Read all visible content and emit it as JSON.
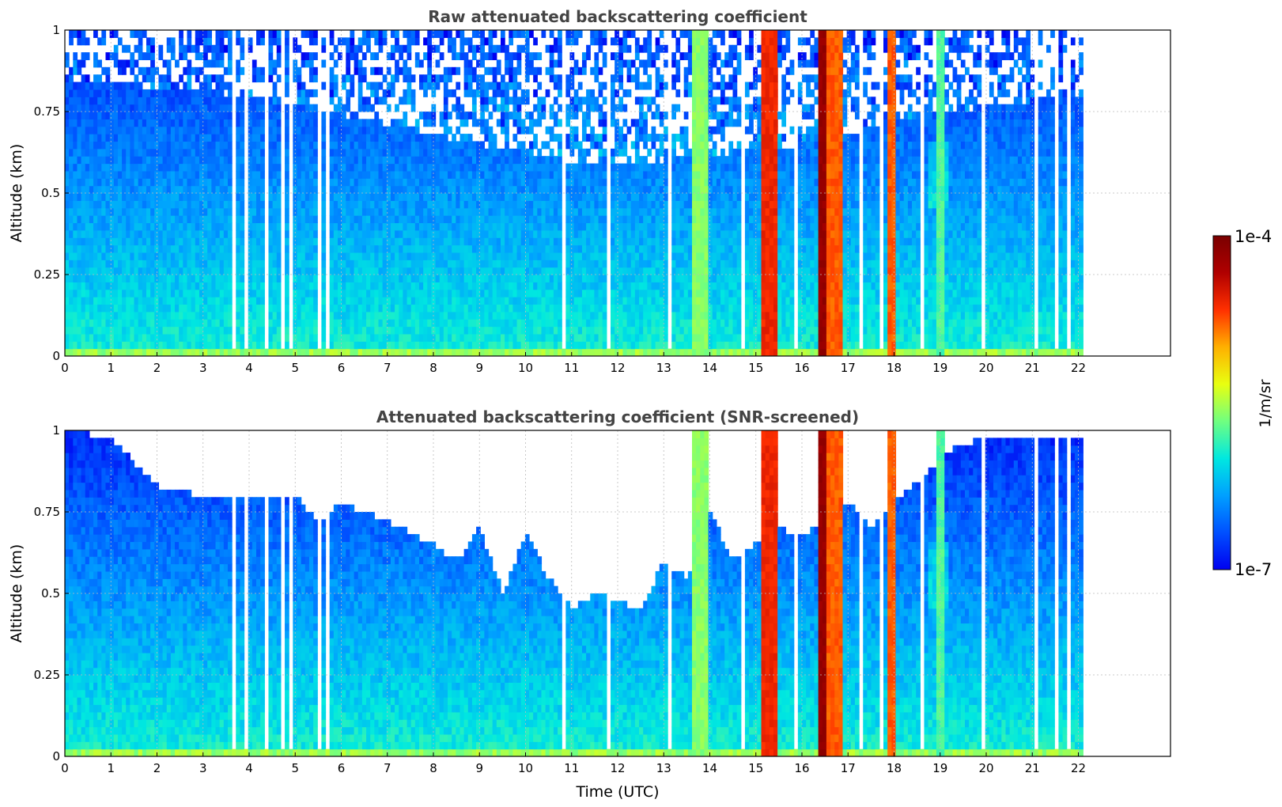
{
  "colors": {
    "plot_bg": "#ffffff",
    "grid": "#bbbbbb",
    "axis": "#000000",
    "title": "#444444"
  },
  "colormap": {
    "name": "jet",
    "stops": [
      "#0000f0",
      "#0050ff",
      "#00a0ff",
      "#00e8e0",
      "#70ff80",
      "#e8ff10",
      "#ffb000",
      "#ff3000",
      "#b00000",
      "#7a0000"
    ]
  },
  "colorbar": {
    "label": "1/m/sr",
    "max_label": "1e-4",
    "min_label": "1e-7",
    "scale": "log",
    "range": [
      1e-07,
      0.0001
    ]
  },
  "xaxis_label": "Time (UTC)",
  "chart_data": [
    {
      "type": "heatmap",
      "title": "Raw attenuated backscattering coefficient",
      "ylabel": "Altitude (km)",
      "xlabel": "",
      "xlim": [
        0,
        24
      ],
      "ylim": [
        0,
        1
      ],
      "x_ticks": [
        "0",
        "1",
        "2",
        "3",
        "4",
        "5",
        "6",
        "7",
        "8",
        "9",
        "10",
        "11",
        "12",
        "13",
        "14",
        "15",
        "16",
        "17",
        "18",
        "19",
        "20",
        "21",
        "22"
      ],
      "y_ticks": [
        "0",
        "0.25",
        "0.5",
        "0.75",
        "1"
      ],
      "grid": true,
      "data_end_hour": 22.1,
      "noise_floor_km": [
        [
          0,
          0.85
        ],
        [
          4,
          0.8
        ],
        [
          9,
          0.65
        ],
        [
          11,
          0.6
        ],
        [
          13,
          0.6
        ],
        [
          16,
          0.65
        ],
        [
          19,
          0.75
        ],
        [
          22.1,
          0.8
        ]
      ],
      "strong_bands": [
        {
          "start": 15.15,
          "end": 15.5,
          "peak_value": 3e-05
        },
        {
          "start": 16.35,
          "end": 16.55,
          "peak_value": 8e-05
        },
        {
          "start": 16.55,
          "end": 16.85,
          "peak_value": 2e-05
        },
        {
          "start": 17.85,
          "end": 18.05,
          "peak_value": 2e-05
        },
        {
          "start": 13.6,
          "end": 14.0,
          "peak_value": 3e-06
        },
        {
          "start": 18.95,
          "end": 19.1,
          "peak_value": 2e-06
        }
      ],
      "gaps_hours": [
        3.7,
        3.9,
        4.4,
        4.7,
        4.9,
        5.3,
        5.5,
        5.7,
        10.8,
        11.4,
        11.8,
        13.1,
        14.7,
        15.9,
        17.3,
        17.7,
        18.6,
        19.9,
        20.6,
        21.1,
        21.5,
        21.8
      ]
    },
    {
      "type": "heatmap",
      "title": "Attenuated backscattering coefficient (SNR-screened)",
      "ylabel": "Altitude (km)",
      "xlabel": "Time (UTC)",
      "xlim": [
        0,
        24
      ],
      "ylim": [
        0,
        1
      ],
      "x_ticks": [
        "0",
        "1",
        "2",
        "3",
        "4",
        "5",
        "6",
        "7",
        "8",
        "9",
        "10",
        "11",
        "12",
        "13",
        "14",
        "15",
        "16",
        "17",
        "18",
        "19",
        "20",
        "21",
        "22"
      ],
      "y_ticks": [
        "0",
        "0.25",
        "0.5",
        "0.75",
        "1"
      ],
      "grid": true,
      "data_end_hour": 22.1,
      "screen_top_km": [
        [
          0,
          1.0
        ],
        [
          1,
          0.98
        ],
        [
          1.5,
          0.9
        ],
        [
          2,
          0.83
        ],
        [
          3,
          0.8
        ],
        [
          4,
          0.8
        ],
        [
          5,
          0.8
        ],
        [
          5.5,
          0.72
        ],
        [
          6,
          0.78
        ],
        [
          7,
          0.72
        ],
        [
          8,
          0.65
        ],
        [
          8.5,
          0.6
        ],
        [
          9,
          0.7
        ],
        [
          9.5,
          0.5
        ],
        [
          10,
          0.68
        ],
        [
          10.5,
          0.55
        ],
        [
          11,
          0.45
        ],
        [
          11.5,
          0.5
        ],
        [
          12,
          0.48
        ],
        [
          12.5,
          0.45
        ],
        [
          13,
          0.6
        ],
        [
          13.5,
          0.55
        ],
        [
          14,
          0.75
        ],
        [
          14.5,
          0.6
        ],
        [
          15,
          0.65
        ],
        [
          15.5,
          0.7
        ],
        [
          16,
          0.68
        ],
        [
          16.5,
          0.72
        ],
        [
          17,
          0.78
        ],
        [
          17.5,
          0.7
        ],
        [
          18,
          0.78
        ],
        [
          18.5,
          0.85
        ],
        [
          19,
          0.9
        ],
        [
          19.3,
          0.95
        ],
        [
          20,
          0.98
        ],
        [
          22.1,
          0.98
        ]
      ]
    }
  ]
}
